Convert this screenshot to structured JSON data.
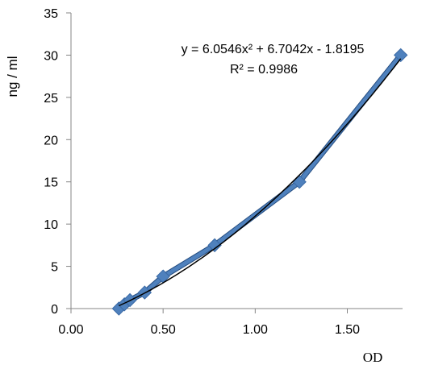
{
  "chart_data": {
    "type": "scatter",
    "xlabel": "OD",
    "ylabel": "ng / ml",
    "xlim": [
      0,
      1.8
    ],
    "ylim": [
      0,
      35
    ],
    "xticks": [
      "0.00",
      "0.50",
      "1.00",
      "1.50"
    ],
    "xtick_values": [
      0,
      0.5,
      1.0,
      1.5
    ],
    "yticks": [
      "0",
      "5",
      "10",
      "15",
      "20",
      "25",
      "30",
      "35"
    ],
    "ytick_values": [
      0,
      5,
      10,
      15,
      20,
      25,
      30,
      35
    ],
    "grid": false,
    "series": [
      {
        "marker": "diamond",
        "color": "#4f81bd",
        "x": [
          0.26,
          0.29,
          0.32,
          0.4,
          0.5,
          0.78,
          1.24,
          1.79
        ],
        "y": [
          0.0,
          0.5,
          1.0,
          1.9,
          3.8,
          7.5,
          15.0,
          30.0
        ]
      }
    ],
    "trendline": {
      "type": "polynomial",
      "coefficients": {
        "a": 6.0546,
        "b": 6.7042,
        "c": -1.8195
      },
      "color": "#000000",
      "equation_line1": "y = 6.0546x² + 6.7042x - 1.8195",
      "equation_line2": "R² = 0.9986"
    }
  }
}
